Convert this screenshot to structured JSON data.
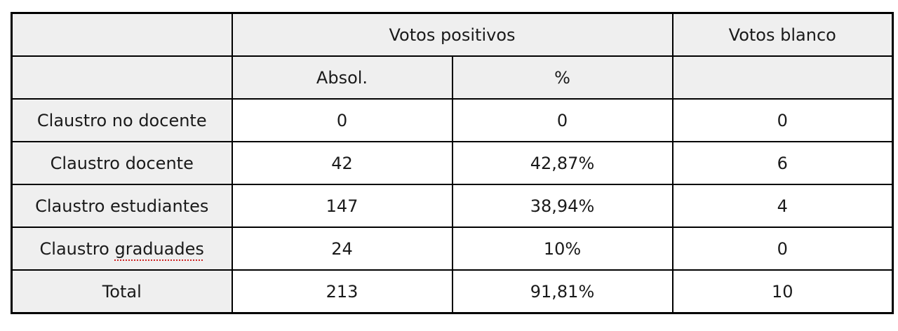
{
  "table": {
    "header": {
      "votos_positivos": "Votos positivos",
      "votos_blanco": "Votos blanco",
      "absol": "Absol.",
      "percent": "%"
    },
    "rows": [
      {
        "label": "Claustro no docente",
        "absol": "0",
        "percent": "0",
        "blanco": "0"
      },
      {
        "label": "Claustro docente",
        "absol": "42",
        "percent": "42,87%",
        "blanco": "6"
      },
      {
        "label": "Claustro estudiantes",
        "absol": "147",
        "percent": "38,94%",
        "blanco": "4"
      },
      {
        "label_prefix": "Claustro ",
        "label_word": "graduades",
        "absol": "24",
        "percent": "10%",
        "blanco": "0"
      },
      {
        "label": "Total",
        "absol": "213",
        "percent": "91,81%",
        "blanco": "10"
      }
    ],
    "colors": {
      "header_bg": "#efefef",
      "cell_bg": "#ffffff",
      "border": "#000000",
      "text": "#1a1a1a",
      "spellcheck_underline": "#cc2222"
    },
    "spellcheck_word": "graduades"
  },
  "chart_data": {
    "type": "table",
    "title": "",
    "column_groups": [
      {
        "label": "",
        "span": 1
      },
      {
        "label": "Votos positivos",
        "span": 2
      },
      {
        "label": "Votos blanco",
        "span": 1
      }
    ],
    "columns": [
      "",
      "Absol.",
      "%",
      "Votos blanco"
    ],
    "rows": [
      [
        "Claustro no docente",
        0,
        "0",
        0
      ],
      [
        "Claustro docente",
        42,
        "42,87%",
        6
      ],
      [
        "Claustro estudiantes",
        147,
        "38,94%",
        4
      ],
      [
        "Claustro graduades",
        24,
        "10%",
        0
      ],
      [
        "Total",
        213,
        "91,81%",
        10
      ]
    ]
  }
}
